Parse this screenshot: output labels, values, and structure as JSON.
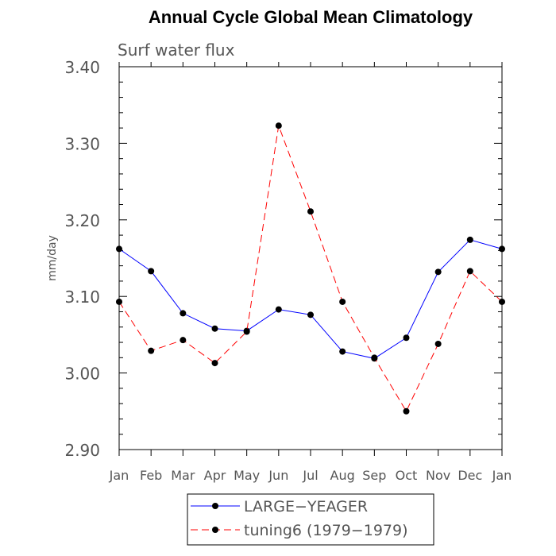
{
  "chart_data": {
    "type": "line",
    "title": "Annual Cycle Global Mean Climatology",
    "subtitle": "Surf water flux",
    "ylabel": "mm/day",
    "xlabel": "",
    "categories": [
      "Jan",
      "Feb",
      "Mar",
      "Apr",
      "May",
      "Jun",
      "Jul",
      "Aug",
      "Sep",
      "Oct",
      "Nov",
      "Dec",
      "Jan"
    ],
    "ylim": [
      2.9,
      3.4
    ],
    "yticks": [
      "2.90",
      "3.00",
      "3.10",
      "3.20",
      "3.30",
      "3.40"
    ],
    "series": [
      {
        "name": "LARGE−YEAGER",
        "color": "#0000ff",
        "dash": "solid",
        "values": [
          3.162,
          3.133,
          3.078,
          3.058,
          3.055,
          3.083,
          3.076,
          3.028,
          3.019,
          3.046,
          3.132,
          3.174,
          3.162
        ]
      },
      {
        "name": "tuning6 (1979−1979)",
        "color": "#ff0000",
        "dash": "dashed",
        "values": [
          3.093,
          3.029,
          3.043,
          3.013,
          3.054,
          3.323,
          3.211,
          3.093,
          3.02,
          2.95,
          3.038,
          3.133,
          3.093
        ]
      }
    ],
    "legend_position": "bottom",
    "grid": false
  }
}
